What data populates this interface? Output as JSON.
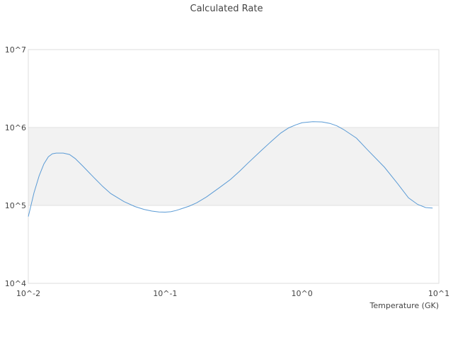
{
  "chart_data": {
    "type": "line",
    "title": "Calculated Rate",
    "xlabel": "Temperature (GK)",
    "ylabel": "",
    "x_scale": "log",
    "y_scale": "log",
    "xlim": [
      0.01,
      10
    ],
    "ylim": [
      10000,
      10000000
    ],
    "x_tick_labels": [
      "10^-2",
      "10^-1",
      "10^0",
      "10^1"
    ],
    "y_tick_labels": [
      "10^4",
      "10^5",
      "10^6",
      "10^7"
    ],
    "grid": false,
    "legend": "none",
    "alternating_band_color": "#f2f2f2",
    "line_color": "#5b9bd5",
    "series": [
      {
        "x": [
          0.01,
          0.011,
          0.012,
          0.013,
          0.014,
          0.015,
          0.016,
          0.018,
          0.02,
          0.022,
          0.025,
          0.03,
          0.035,
          0.04,
          0.05,
          0.06,
          0.07,
          0.08,
          0.09,
          0.1,
          0.11,
          0.12,
          0.13,
          0.15,
          0.17,
          0.2,
          0.25,
          0.3,
          0.35,
          0.4,
          0.5,
          0.6,
          0.7,
          0.8,
          0.9,
          1.0,
          1.2,
          1.4,
          1.6,
          1.8,
          2.0,
          2.5,
          3.0,
          4.0,
          5.0,
          6.0,
          7.0,
          8.0,
          9.0
        ],
        "y": [
          72000,
          145000,
          240000,
          340000,
          420000,
          460000,
          470000,
          470000,
          450000,
          400000,
          320000,
          230000,
          175000,
          142000,
          112000,
          97000,
          89000,
          84500,
          82500,
          82000,
          83000,
          86000,
          90000,
          98000,
          108000,
          128000,
          170000,
          215000,
          275000,
          345000,
          500000,
          670000,
          850000,
          990000,
          1080000,
          1150000,
          1190000,
          1180000,
          1130000,
          1050000,
          950000,
          730000,
          520000,
          310000,
          190000,
          125000,
          103000,
          94000,
          92500
        ]
      }
    ]
  }
}
